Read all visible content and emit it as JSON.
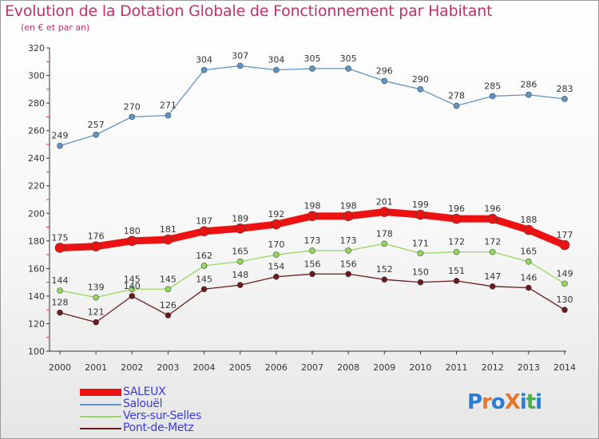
{
  "title": "Evolution de la Dotation Globale de Fonctionnement par Habitant",
  "subtitle": "(en € et par an)",
  "logo_text": "ProXiti",
  "colors": {
    "title": "#c0306a",
    "legend_text": "#3a3adc",
    "logo_letters": [
      "#2a7fd4",
      "#e8772e",
      "#2a7fd4",
      "#e8772e",
      "#2a7fd4",
      "#49b04a",
      "#2a7fd4"
    ]
  },
  "chart_data": {
    "type": "line",
    "title": "Evolution de la Dotation Globale de Fonctionnement par Habitant",
    "subtitle": "(en € et par an)",
    "xlabel": "",
    "ylabel": "",
    "x": [
      "2000",
      "2001",
      "2002",
      "2003",
      "2004",
      "2005",
      "2006",
      "2007",
      "2008",
      "2009",
      "2010",
      "2011",
      "2012",
      "2013",
      "2014"
    ],
    "ylim": [
      100,
      320
    ],
    "yticks": [
      100,
      120,
      140,
      160,
      180,
      200,
      220,
      240,
      260,
      280,
      300,
      320
    ],
    "grid": false,
    "legend_position": "bottom-left",
    "series": [
      {
        "name": "SALEUX",
        "color": "#ee1111",
        "values": [
          175,
          176,
          180,
          181,
          187,
          189,
          192,
          198,
          198,
          201,
          199,
          196,
          196,
          188,
          177
        ]
      },
      {
        "name": "Salouël",
        "color": "#5e95c7",
        "values": [
          249,
          257,
          270,
          271,
          304,
          307,
          304,
          305,
          305,
          296,
          290,
          278,
          285,
          286,
          283
        ]
      },
      {
        "name": "Vers-sur-Selles",
        "color": "#94d85c",
        "values": [
          144,
          139,
          145,
          145,
          162,
          165,
          170,
          173,
          173,
          178,
          171,
          172,
          172,
          165,
          149
        ]
      },
      {
        "name": "Pont-de-Metz",
        "color": "#6a1a1a",
        "values": [
          128,
          121,
          140,
          126,
          145,
          148,
          154,
          156,
          156,
          152,
          150,
          151,
          147,
          146,
          130
        ]
      }
    ]
  }
}
